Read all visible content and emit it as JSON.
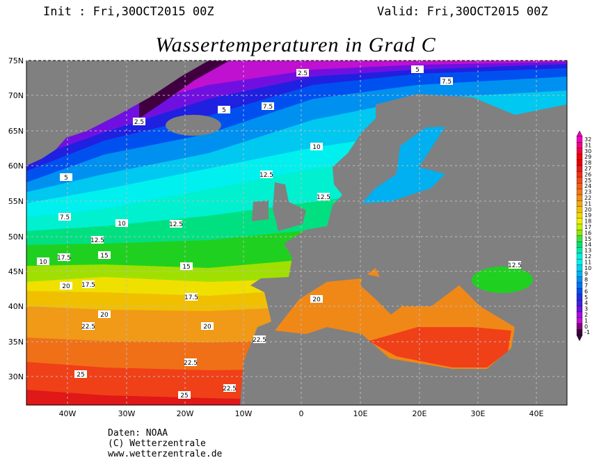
{
  "header": {
    "init": "Init : Fri,30OCT2015 00Z",
    "valid": "Valid: Fri,30OCT2015 00Z"
  },
  "title": "Wassertemperaturen in Grad C",
  "map": {
    "lon_labels": [
      "40W",
      "30W",
      "20W",
      "10W",
      "0",
      "10E",
      "20E",
      "30E",
      "40E"
    ],
    "lat_labels": [
      "75N",
      "70N",
      "65N",
      "60N",
      "55N",
      "50N",
      "45N",
      "40N",
      "35N",
      "30N"
    ],
    "contour_labels": [
      "2.5",
      "5",
      "7.5",
      "2.5",
      "5",
      "7.5",
      "10",
      "12.5",
      "12.5",
      "10",
      "12.5",
      "7.5",
      "5",
      "12.5",
      "15",
      "17.5",
      "10",
      "15",
      "20",
      "17.5",
      "17.5",
      "20",
      "20",
      "22.5",
      "22.5",
      "22.5",
      "25",
      "25",
      "22.5",
      "20",
      "12.5"
    ]
  },
  "colorbar": {
    "labels": [
      "32",
      "31",
      "30",
      "29",
      "28",
      "27",
      "26",
      "25",
      "24",
      "23",
      "22",
      "21",
      "20",
      "19",
      "18",
      "17",
      "16",
      "15",
      "14",
      "13",
      "12",
      "11",
      "10",
      "9",
      "8",
      "7",
      "6",
      "5",
      "4",
      "3",
      "2",
      "1",
      "0",
      "-1"
    ]
  },
  "footer": {
    "lines": [
      "Daten: NOAA",
      "(C) Wetterzentrale",
      "www.wetterzentrale.de"
    ]
  }
}
